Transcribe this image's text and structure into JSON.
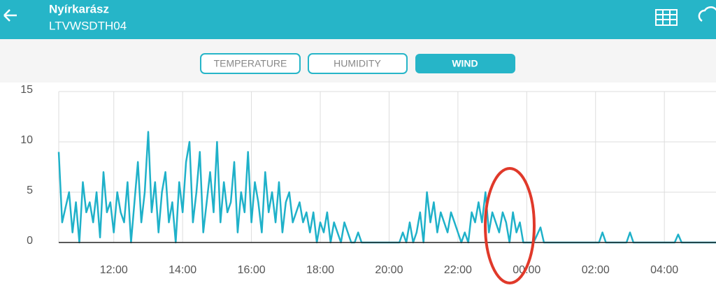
{
  "header": {
    "title": "Nyírkarász",
    "subtitle": "LTVWSDTH04"
  },
  "tabs": [
    "TEMPERATURE",
    "HUMIDITY",
    "WIND"
  ],
  "chart_data": {
    "type": "line",
    "color": "#1fb1c9",
    "grid": true,
    "xlim": [
      10.4,
      29.5
    ],
    "ylim": [
      0,
      15
    ],
    "yticks": [
      0,
      5,
      10,
      15
    ],
    "xticks": [
      {
        "value": 12,
        "label": "12:00"
      },
      {
        "value": 14,
        "label": "14:00"
      },
      {
        "value": 16,
        "label": "16:00"
      },
      {
        "value": 18,
        "label": "18:00"
      },
      {
        "value": 20,
        "label": "20:00"
      },
      {
        "value": 22,
        "label": "22:00"
      },
      {
        "value": 24,
        "label": "00:00"
      },
      {
        "value": 26,
        "label": "02:00"
      },
      {
        "value": 28,
        "label": "04:00"
      }
    ],
    "x": [
      10.4,
      10.5,
      10.6,
      10.7,
      10.8,
      10.9,
      11.0,
      11.1,
      11.2,
      11.3,
      11.4,
      11.5,
      11.6,
      11.7,
      11.8,
      11.9,
      12.0,
      12.1,
      12.2,
      12.3,
      12.4,
      12.5,
      12.6,
      12.7,
      12.8,
      12.9,
      13.0,
      13.1,
      13.2,
      13.3,
      13.4,
      13.5,
      13.6,
      13.7,
      13.8,
      13.9,
      14.0,
      14.1,
      14.2,
      14.3,
      14.4,
      14.5,
      14.6,
      14.7,
      14.8,
      14.9,
      15.0,
      15.1,
      15.2,
      15.3,
      15.4,
      15.5,
      15.6,
      15.7,
      15.8,
      15.9,
      16.0,
      16.1,
      16.2,
      16.3,
      16.4,
      16.5,
      16.6,
      16.7,
      16.8,
      16.9,
      17.0,
      17.1,
      17.2,
      17.3,
      17.4,
      17.5,
      17.6,
      17.7,
      17.8,
      17.9,
      18.0,
      18.1,
      18.2,
      18.3,
      18.4,
      18.5,
      18.6,
      18.7,
      18.8,
      18.9,
      19.0,
      19.1,
      19.2,
      19.3,
      19.4,
      19.5,
      19.6,
      19.7,
      19.8,
      19.9,
      20.0,
      20.1,
      20.2,
      20.3,
      20.4,
      20.5,
      20.6,
      20.7,
      20.8,
      20.9,
      21.0,
      21.1,
      21.2,
      21.3,
      21.4,
      21.5,
      21.6,
      21.7,
      21.8,
      21.9,
      22.0,
      22.1,
      22.2,
      22.3,
      22.4,
      22.5,
      22.6,
      22.7,
      22.8,
      22.9,
      23.0,
      23.1,
      23.2,
      23.3,
      23.4,
      23.5,
      23.6,
      23.7,
      23.8,
      23.9,
      24.0,
      24.2,
      24.4,
      24.5,
      24.7,
      26.1,
      26.2,
      26.3,
      26.9,
      27.0,
      27.1,
      28.3,
      28.4,
      28.5,
      29.5
    ],
    "values": [
      9,
      2,
      3.5,
      5,
      1,
      4,
      0,
      6,
      3,
      4,
      2,
      5,
      0.5,
      7,
      3,
      4,
      1,
      5,
      3,
      2,
      6,
      0,
      4,
      8,
      2,
      5,
      11,
      3,
      6,
      1,
      5,
      7,
      2,
      4,
      0,
      6,
      3,
      8,
      10,
      2,
      5,
      9,
      1,
      4,
      7,
      3,
      10,
      2,
      6,
      3,
      4,
      8,
      1,
      5,
      3,
      9,
      2,
      6,
      4,
      1,
      7,
      3,
      5,
      2,
      6,
      1,
      4,
      5,
      2,
      3,
      4,
      2,
      3,
      1,
      3,
      0,
      2,
      1,
      3,
      0,
      2,
      1,
      0,
      2,
      1,
      0,
      0,
      1,
      0,
      0,
      0,
      0,
      0,
      0,
      0,
      0,
      0,
      0,
      0,
      0,
      1,
      0,
      2,
      0,
      1,
      3,
      0,
      5,
      2,
      4,
      1,
      3,
      2,
      1,
      3,
      2,
      1,
      0,
      1,
      0,
      3,
      2,
      4,
      2,
      5,
      1,
      3,
      2,
      1,
      3,
      2,
      0,
      3,
      1,
      2,
      0,
      0,
      0,
      1.5,
      0,
      0,
      0,
      1,
      0,
      0,
      1,
      0,
      0,
      0.8,
      0,
      0
    ]
  }
}
